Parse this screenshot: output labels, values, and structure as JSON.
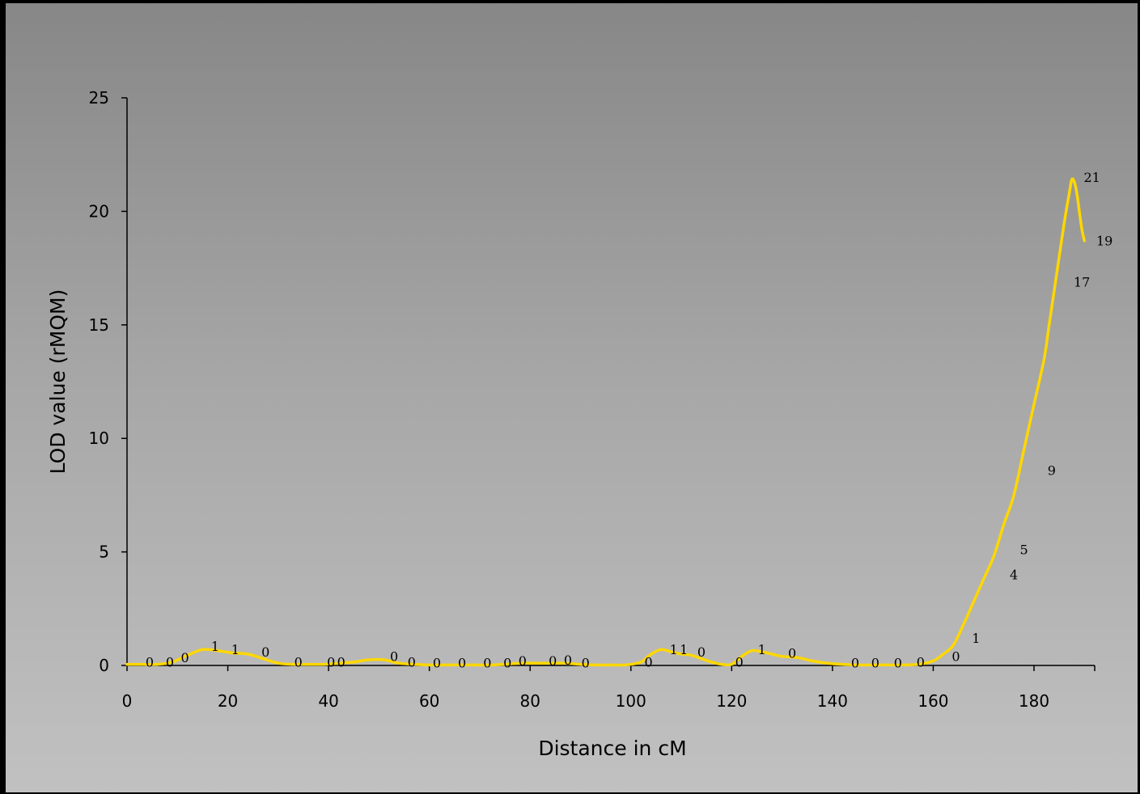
{
  "chart_data": {
    "type": "line",
    "title": "",
    "xlabel": "Distance in cM",
    "ylabel": "LOD value (rMQM)",
    "xlim": [
      0,
      190
    ],
    "ylim": [
      0,
      25
    ],
    "x_ticks": [
      0,
      20,
      40,
      60,
      80,
      100,
      120,
      140,
      160,
      180
    ],
    "y_ticks": [
      0,
      5,
      10,
      15,
      20,
      25
    ],
    "grid": false,
    "legend": "none",
    "line_color": "#FFD700",
    "series": [
      {
        "name": "",
        "x": [
          0,
          3,
          6,
          9,
          12,
          15,
          18,
          21,
          24,
          27,
          30,
          33,
          36,
          39,
          42,
          45,
          48,
          51,
          54,
          57,
          60,
          63,
          66,
          69,
          72,
          75,
          78,
          81,
          84,
          87,
          90,
          93,
          96,
          99,
          102,
          104,
          106,
          108,
          110,
          112,
          114,
          116,
          118,
          120,
          122,
          124,
          126,
          128,
          130,
          133,
          136,
          139,
          142,
          145,
          148,
          151,
          154,
          157,
          160,
          162,
          164,
          166,
          168,
          170,
          172,
          174,
          176,
          178,
          180,
          182,
          183,
          184,
          185,
          186,
          187,
          187.5,
          188,
          188.5,
          189,
          189.5,
          190
        ],
        "y": [
          0.05,
          0.05,
          0.05,
          0.15,
          0.45,
          0.7,
          0.65,
          0.55,
          0.5,
          0.3,
          0.1,
          0.05,
          0.05,
          0.05,
          0.1,
          0.15,
          0.25,
          0.25,
          0.1,
          0.05,
          0.02,
          0.02,
          0.02,
          0.02,
          0.02,
          0.05,
          0.1,
          0.1,
          0.1,
          0.1,
          0.05,
          0.02,
          0.02,
          0.02,
          0.15,
          0.5,
          0.7,
          0.6,
          0.5,
          0.45,
          0.3,
          0.15,
          0.05,
          0.05,
          0.4,
          0.65,
          0.6,
          0.5,
          0.4,
          0.35,
          0.2,
          0.1,
          0.05,
          0.02,
          0.02,
          0.02,
          0.02,
          0.05,
          0.2,
          0.5,
          0.9,
          1.8,
          2.8,
          3.8,
          4.8,
          6.2,
          7.5,
          9.5,
          11.5,
          13.5,
          15.0,
          16.5,
          18.0,
          19.5,
          20.8,
          21.4,
          21.3,
          20.8,
          20.0,
          19.2,
          18.7
        ]
      }
    ],
    "annotations": [
      {
        "x": 4.5,
        "y": 0.05,
        "text": "0"
      },
      {
        "x": 8.5,
        "y": 0.05,
        "text": "0"
      },
      {
        "x": 11.5,
        "y": 0.25,
        "text": "0"
      },
      {
        "x": 17.5,
        "y": 0.75,
        "text": "1"
      },
      {
        "x": 21.5,
        "y": 0.6,
        "text": "1"
      },
      {
        "x": 27.5,
        "y": 0.5,
        "text": "0"
      },
      {
        "x": 34,
        "y": 0.05,
        "text": "0"
      },
      {
        "x": 40.5,
        "y": 0.05,
        "text": "0"
      },
      {
        "x": 42.5,
        "y": 0.05,
        "text": "0"
      },
      {
        "x": 53,
        "y": 0.3,
        "text": "0"
      },
      {
        "x": 56.5,
        "y": 0.05,
        "text": "0"
      },
      {
        "x": 61.5,
        "y": 0.02,
        "text": "0"
      },
      {
        "x": 66.5,
        "y": 0.02,
        "text": "0"
      },
      {
        "x": 71.5,
        "y": 0.02,
        "text": "0"
      },
      {
        "x": 75.5,
        "y": 0.02,
        "text": "0"
      },
      {
        "x": 78.5,
        "y": 0.1,
        "text": "0"
      },
      {
        "x": 84.5,
        "y": 0.1,
        "text": "0"
      },
      {
        "x": 87.5,
        "y": 0.15,
        "text": "0"
      },
      {
        "x": 91,
        "y": 0.02,
        "text": "0"
      },
      {
        "x": 103.5,
        "y": 0.05,
        "text": "0"
      },
      {
        "x": 108.5,
        "y": 0.6,
        "text": "1"
      },
      {
        "x": 110.5,
        "y": 0.6,
        "text": "1"
      },
      {
        "x": 114,
        "y": 0.5,
        "text": "0"
      },
      {
        "x": 121.5,
        "y": 0.05,
        "text": "0"
      },
      {
        "x": 126,
        "y": 0.6,
        "text": "1"
      },
      {
        "x": 132,
        "y": 0.45,
        "text": "0"
      },
      {
        "x": 144.5,
        "y": 0.02,
        "text": "0"
      },
      {
        "x": 148.5,
        "y": 0.02,
        "text": "0"
      },
      {
        "x": 153,
        "y": 0.02,
        "text": "0"
      },
      {
        "x": 157.5,
        "y": 0.05,
        "text": "0"
      },
      {
        "x": 164.5,
        "y": 0.3,
        "text": "0"
      },
      {
        "x": 168.5,
        "y": 1.1,
        "text": "1"
      },
      {
        "x": 176,
        "y": 3.9,
        "text": "4"
      },
      {
        "x": 178,
        "y": 5.0,
        "text": "5"
      },
      {
        "x": 183.5,
        "y": 8.5,
        "text": "9"
      },
      {
        "x": 189.5,
        "y": 16.8,
        "text": "17"
      },
      {
        "x": 191.5,
        "y": 21.4,
        "text": "21"
      },
      {
        "x": 194,
        "y": 18.6,
        "text": "19"
      }
    ]
  }
}
